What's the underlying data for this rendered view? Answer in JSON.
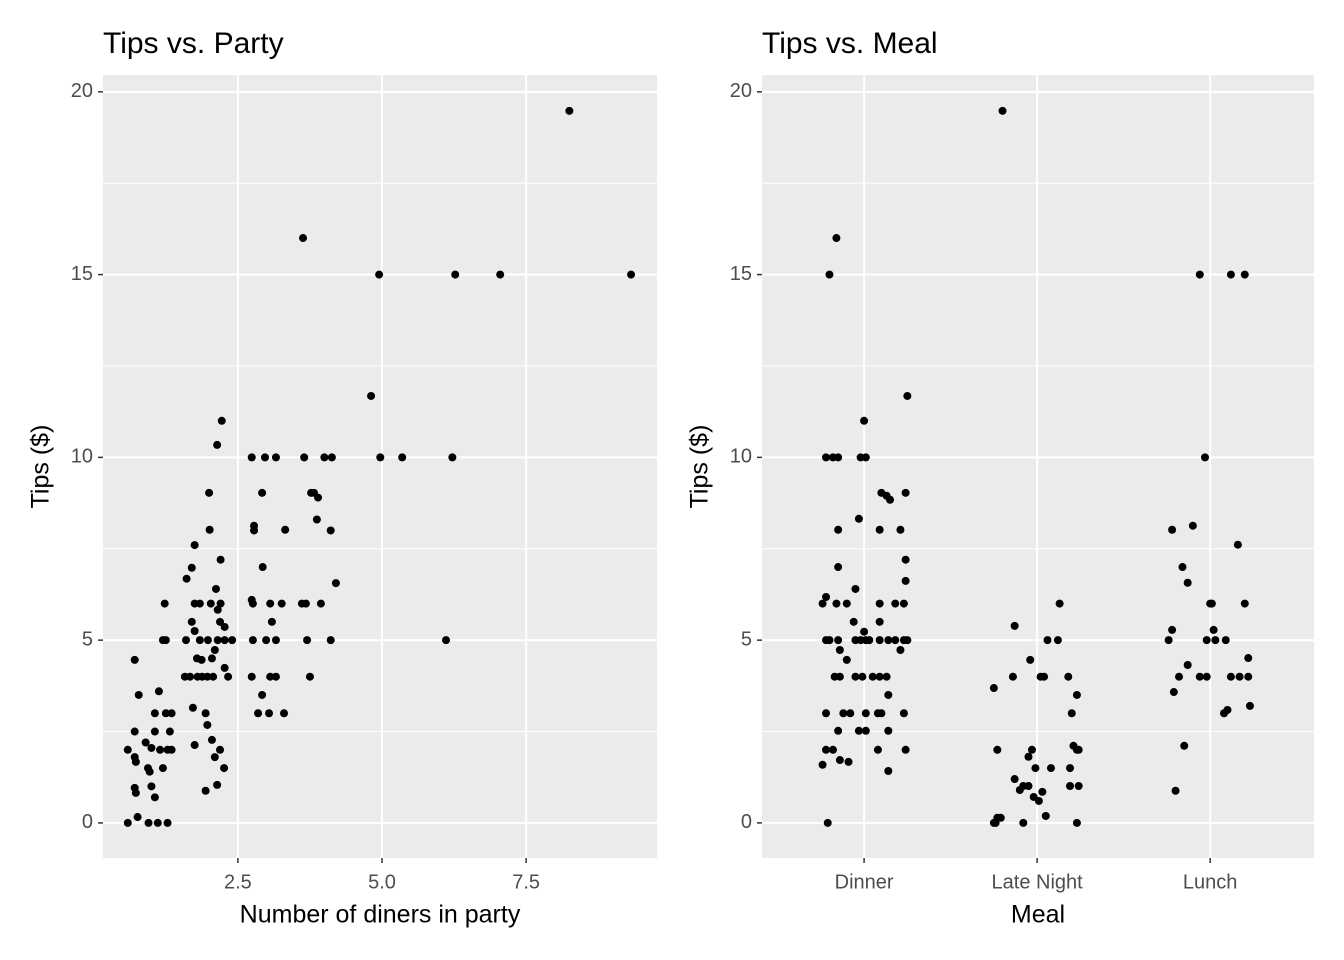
{
  "chart_data": [
    {
      "type": "scatter",
      "title": "Tips vs. Party",
      "xlabel": "Number of diners in party",
      "ylabel": "Tips ($)",
      "color": "#000000",
      "grid": true,
      "xlim": [
        0.16,
        9.77
      ],
      "ylim": [
        -0.96,
        20.46
      ],
      "xticks": [
        2.5,
        {
          "value": 5,
          "label": "5.0"
        },
        7.5
      ],
      "yticks": [
        0,
        5,
        10,
        15,
        20
      ],
      "x": [
        0.59,
        0.71,
        0.71,
        0.71,
        0.73,
        0.71,
        0.73,
        0.59,
        0.76,
        0.78,
        0.9,
        0.94,
        0.97,
        0.95,
        1.0,
        1.06,
        1.06,
        1.0,
        1.06,
        1.13,
        1.11,
        1.15,
        1.2,
        1.23,
        1.25,
        1.28,
        1.28,
        1.32,
        1.35,
        1.35,
        1.2,
        1.25,
        1.61,
        1.67,
        1.7,
        1.7,
        1.75,
        1.75,
        1.75,
        1.6,
        1.72,
        1.75,
        1.79,
        1.8,
        1.84,
        1.84,
        1.87,
        1.88,
        1.94,
        1.94,
        1.98,
        2.0,
        2.01,
        2.03,
        2.05,
        2.07,
        2.1,
        2.1,
        2.12,
        2.14,
        2.14,
        2.15,
        2.15,
        2.19,
        2.19,
        2.2,
        2.2,
        2.22,
        2.26,
        2.27,
        2.27,
        2.33,
        2.27,
        2.4,
        1.58,
        1.97,
        1.97,
        2.05,
        2.74,
        2.74,
        2.76,
        2.78,
        2.78,
        2.76,
        2.74,
        2.85,
        2.92,
        2.92,
        2.93,
        2.97,
        2.99,
        3.04,
        3.06,
        3.06,
        3.09,
        3.16,
        3.16,
        3.16,
        3.32,
        3.3,
        3.26,
        3.63,
        3.65,
        3.61,
        3.68,
        3.7,
        3.75,
        3.77,
        3.82,
        3.89,
        3.87,
        3.94,
        4.0,
        4.13,
        4.11,
        4.11,
        4.2,
        4.81,
        4.95,
        4.97,
        5.35,
        6.11,
        6.22,
        6.27,
        7.05,
        8.25,
        9.32
      ],
      "y": [
        2.0,
        4.46,
        2.5,
        1.8,
        1.67,
        0.96,
        0.82,
        0,
        0.16,
        3.5,
        2.2,
        1.5,
        1.4,
        0,
        1.0,
        3.0,
        2.5,
        2.05,
        0.7,
        3.6,
        0,
        2.0,
        5.0,
        6.0,
        3.0,
        0,
        2.0,
        2.5,
        3.0,
        2.0,
        1.5,
        5.0,
        6.68,
        4.0,
        6.98,
        5.5,
        7.6,
        6.0,
        5.25,
        5.0,
        3.15,
        2.13,
        4.5,
        4.0,
        5.0,
        6.0,
        4.46,
        4.0,
        0.88,
        3.0,
        5.0,
        9.03,
        8.02,
        6.0,
        4.5,
        4.0,
        4.73,
        1.8,
        6.4,
        10.34,
        1.04,
        5.83,
        5.0,
        2.0,
        5.5,
        7.2,
        6.0,
        11.0,
        1.5,
        5.0,
        4.24,
        4.0,
        5.36,
        5.0,
        4.0,
        4.0,
        2.68,
        2.27,
        10,
        6.1,
        6.0,
        8.13,
        8.0,
        5.0,
        4.0,
        3.0,
        3.5,
        9.03,
        7.0,
        10,
        5.0,
        3.0,
        6.0,
        4.0,
        5.5,
        10,
        5.0,
        4.0,
        8.02,
        3.0,
        6.0,
        16.0,
        10,
        6.0,
        6.0,
        5.0,
        4.0,
        9.03,
        9.03,
        8.9,
        8.3,
        6.0,
        10,
        10,
        8.0,
        5.0,
        6.56,
        11.68,
        15,
        10,
        10,
        5.0,
        10,
        15,
        15,
        19.48,
        15
      ]
    },
    {
      "type": "scatter",
      "title": "Tips vs. Meal",
      "xlabel": "Meal",
      "ylabel": "Tips ($)",
      "color": "#000000",
      "grid": true,
      "xlim": [
        0.41,
        3.6
      ],
      "ylim": [
        -0.96,
        20.46
      ],
      "xticks": [
        {
          "value": 1,
          "label": "Dinner"
        },
        {
          "value": 2,
          "label": "Late Night"
        },
        {
          "value": 3,
          "label": "Lunch"
        }
      ],
      "yticks": [
        0,
        5,
        10,
        15,
        20
      ],
      "x": [
        0.8,
        0.84,
        1.0,
        1.25,
        0.78,
        0.82,
        0.85,
        0.98,
        1.01,
        1.1,
        1.13,
        1.15,
        1.24,
        0.97,
        0.85,
        1.09,
        1.21,
        1.24,
        0.85,
        1.24,
        0.95,
        0.78,
        0.76,
        0.84,
        0.9,
        1.09,
        1.18,
        1.23,
        0.94,
        1.09,
        0.78,
        0.8,
        0.85,
        0.95,
        0.98,
        1.01,
        1.03,
        1.09,
        1.14,
        1.18,
        1.23,
        1.25,
        1.0,
        0.86,
        1.21,
        0.83,
        0.86,
        0.95,
        0.99,
        1.05,
        1.09,
        1.13,
        0.9,
        1.14,
        0.78,
        0.88,
        0.92,
        1.01,
        1.08,
        1.1,
        1.23,
        0.85,
        0.97,
        1.01,
        1.14,
        0.78,
        0.82,
        1.08,
        1.24,
        0.86,
        0.91,
        0.76,
        1.14,
        0.79,
        1.8,
        2.13,
        1.87,
        2.06,
        2.12,
        1.96,
        1.86,
        2.02,
        2.04,
        2.18,
        1.75,
        2.23,
        2.2,
        1.77,
        1.97,
        2.21,
        2.24,
        2.23,
        1.95,
        2.19,
        1.99,
        2.08,
        1.87,
        1.92,
        1.95,
        1.9,
        2.03,
        1.98,
        2.01,
        2.19,
        2.24,
        2.05,
        1.77,
        1.79,
        1.75,
        1.76,
        1.92,
        2.23,
        2.94,
        3.12,
        3.2,
        2.97,
        2.78,
        2.9,
        3.16,
        2.84,
        2.87,
        2.78,
        3.0,
        3.01,
        3.2,
        3.02,
        2.76,
        2.98,
        3.03,
        3.09,
        2.87,
        2.82,
        2.94,
        2.98,
        3.12,
        3.17,
        3.22,
        3.22,
        2.79,
        3.08,
        3.1,
        3.23,
        2.85,
        2.8
      ],
      "y": [
        15,
        16,
        11,
        11.68,
        10,
        10,
        10,
        10,
        10,
        9.03,
        8.95,
        8.84,
        9.03,
        8.32,
        8.02,
        8.02,
        8.02,
        7.2,
        7.0,
        6.62,
        6.4,
        6.18,
        6.0,
        6.0,
        6.0,
        6.0,
        6.0,
        6.0,
        5.5,
        5.5,
        5.0,
        5.0,
        5.0,
        5.0,
        5.0,
        5.0,
        5.0,
        5.0,
        5.0,
        5.0,
        5.0,
        5.0,
        5.23,
        4.73,
        4.73,
        4.0,
        4.0,
        4.0,
        4.0,
        4.0,
        4.0,
        4.0,
        4.46,
        3.5,
        3.0,
        3.0,
        3.0,
        3.0,
        3.0,
        3.0,
        3.0,
        2.52,
        2.52,
        2.52,
        2.52,
        2.0,
        2.0,
        2.0,
        2.0,
        1.72,
        1.67,
        1.59,
        1.42,
        0,
        19.48,
        6.0,
        5.39,
        5.0,
        5.0,
        4.46,
        4.0,
        4.0,
        4.0,
        4.0,
        3.69,
        3.5,
        3.0,
        2.0,
        2.0,
        2.11,
        2.0,
        2.0,
        1.81,
        1.5,
        1.5,
        1.5,
        1.2,
        1.01,
        1.01,
        0.9,
        0.85,
        0.71,
        0.6,
        1.01,
        1.01,
        0.19,
        0.14,
        0.14,
        0,
        0,
        0,
        0,
        15,
        15,
        15,
        10,
        8.02,
        8.13,
        7.61,
        7.0,
        6.57,
        5.28,
        6.0,
        6.0,
        6.0,
        5.28,
        5.0,
        5.0,
        5.0,
        5.0,
        4.32,
        4.0,
        4.0,
        4.0,
        4.0,
        4.0,
        4.0,
        4.51,
        3.58,
        3.0,
        3.09,
        3.2,
        2.11,
        0.88
      ]
    }
  ]
}
